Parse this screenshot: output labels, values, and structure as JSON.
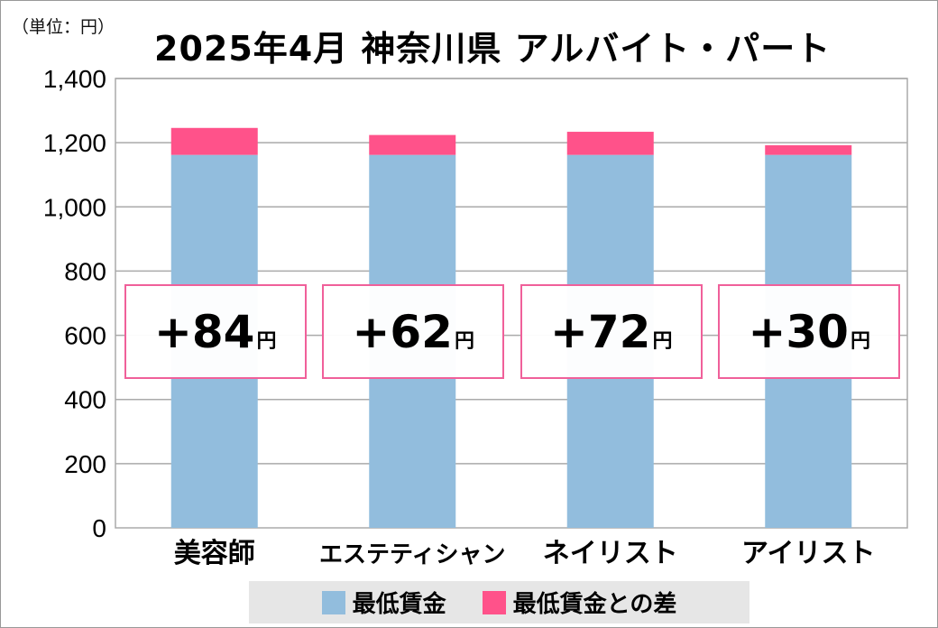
{
  "chart_data": {
    "type": "bar",
    "stacked": true,
    "title": "2025年4月 神奈川県 アルバイト・パート",
    "unit_label": "（単位：円）",
    "categories": [
      "美容師",
      "エステティシャン",
      "ネイリスト",
      "アイリスト"
    ],
    "series": [
      {
        "name": "最低賃金",
        "color": "#92bddd",
        "values": [
          1162,
          1162,
          1162,
          1162
        ]
      },
      {
        "name": "最低賃金との差",
        "color": "#ff528a",
        "values": [
          84,
          62,
          72,
          30
        ]
      }
    ],
    "annotations": [
      "+84",
      "+62",
      "+72",
      "+30"
    ],
    "annotation_unit": "円",
    "ylim": [
      0,
      1400
    ],
    "yticks": [
      "0",
      "200",
      "400",
      "600",
      "800",
      "1,000",
      "1,200",
      "1,400"
    ],
    "grid": true,
    "legend": "bottom"
  }
}
